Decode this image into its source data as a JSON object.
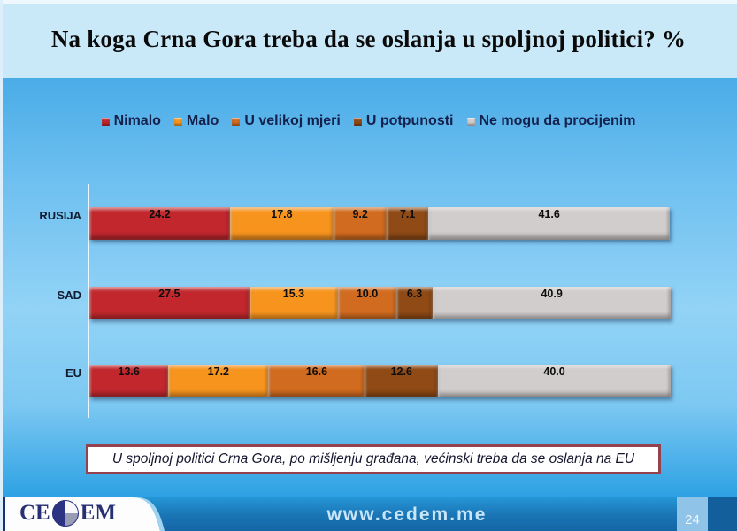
{
  "header": {
    "title": "Na koga Crna Gora treba da se oslanja u spoljnoj politici? %"
  },
  "note": {
    "text": "U spoljnoj politici Crna Gora, po mišljenju građana, većinski treba da se oslanja na EU"
  },
  "footer": {
    "url": "www.cedem.me",
    "page_number": "24",
    "logo_left": "CE",
    "logo_right": "EM"
  },
  "colors": {
    "title_bg": "#c9e8f8",
    "chart_bg_top": "#4aace7",
    "chart_bg_mid": "#92d3f6",
    "chart_bg_bottom": "#2da1e3",
    "note_border": "#96424e",
    "footer_bar": "#1a74b4",
    "page_box": "#8fc3e8",
    "legend_text": "#14214c",
    "logo_navy": "#2b3382"
  },
  "chart_data": {
    "type": "bar",
    "stacked": true,
    "orientation": "horizontal",
    "title": "Na koga Crna Gora treba da se oslanja u spoljnoj politici? %",
    "categories": [
      "RUSIJA",
      "SAD",
      "EU"
    ],
    "series": [
      {
        "name": "Nimalo",
        "color": "#c1272d",
        "values": [
          24.2,
          27.5,
          13.6
        ]
      },
      {
        "name": "Malo",
        "color": "#f7941e",
        "values": [
          17.8,
          15.3,
          17.2
        ]
      },
      {
        "name": "U velikoj mjeri",
        "color": "#d16b1f",
        "values": [
          9.2,
          10.0,
          16.6
        ]
      },
      {
        "name": "U potpunosti",
        "color": "#8f4a15",
        "values": [
          7.1,
          6.3,
          12.6
        ]
      },
      {
        "name": "Ne mogu da procijenim",
        "color": "#d2cdcd",
        "values": [
          41.6,
          40.9,
          40.0
        ]
      }
    ],
    "xlim": [
      0,
      100
    ],
    "value_labels": true,
    "legend_position": "top",
    "annotation": "U spoljnoj politici Crna Gora, po mišljenju građana, većinski treba da se oslanja na EU"
  }
}
